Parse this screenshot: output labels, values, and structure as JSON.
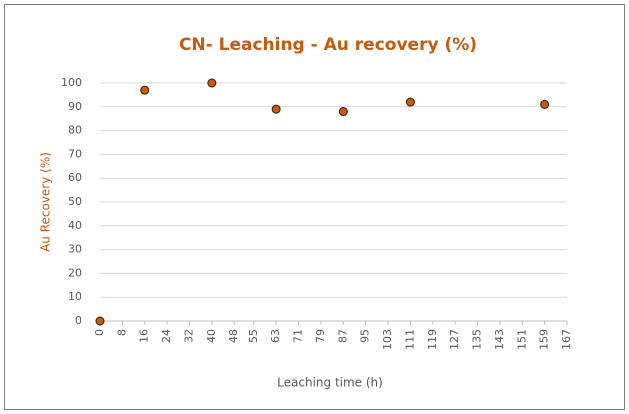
{
  "chart_data": {
    "type": "scatter",
    "title": "CN- Leaching - Au recovery (%)",
    "x_label": "Leaching time (h)",
    "y_label": "Au Recovery (%)",
    "x": [
      0,
      16,
      40,
      63,
      87,
      111,
      159
    ],
    "values": [
      0,
      97,
      100,
      89,
      88,
      92,
      91
    ],
    "color": "#c55a11",
    "xlim": [
      0,
      167
    ],
    "xticks": [
      0,
      8,
      16,
      24,
      32,
      40,
      48,
      55,
      63,
      71,
      79,
      87,
      95,
      103,
      111,
      119,
      127,
      135,
      143,
      151,
      159,
      167
    ],
    "ylim": [
      0,
      100
    ],
    "yticks": [
      0,
      10,
      20,
      30,
      40,
      50,
      60,
      70,
      80,
      90,
      100
    ],
    "grid": true
  }
}
